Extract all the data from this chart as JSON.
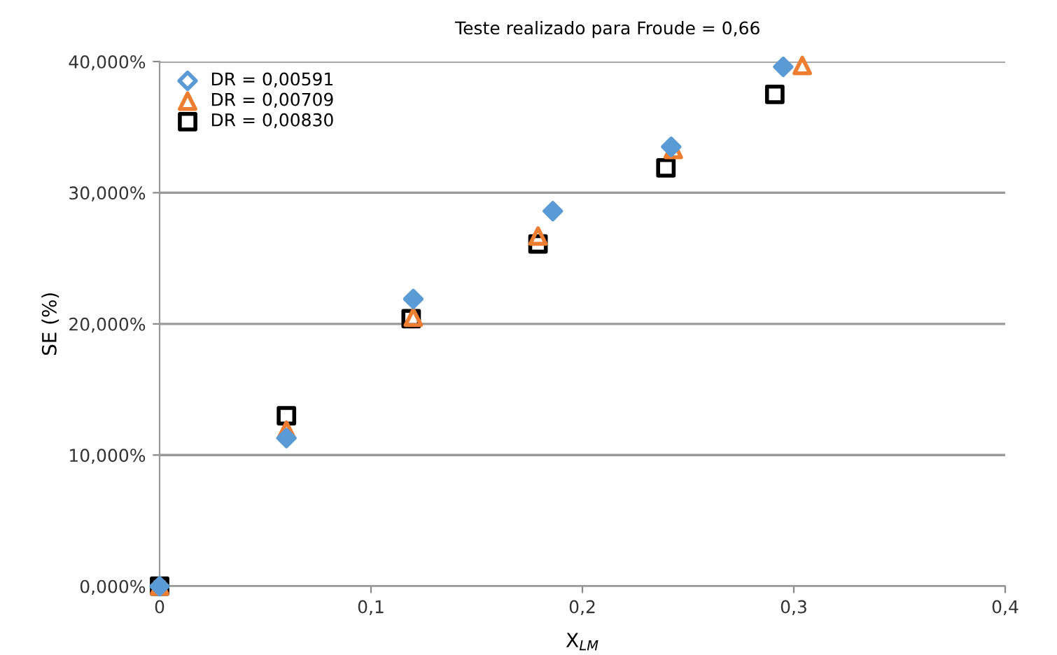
{
  "chart_data": {
    "type": "scatter",
    "title": "Teste realizado para Froude = 0,66",
    "xlabel": "X$_{LM}$",
    "ylabel": "SE (%)",
    "xlim": [
      0,
      0.4
    ],
    "ylim": [
      0,
      40
    ],
    "xticks": [
      {
        "value": 0,
        "label": "0"
      },
      {
        "value": 0.1,
        "label": "0,1"
      },
      {
        "value": 0.2,
        "label": "0,2"
      },
      {
        "value": 0.3,
        "label": "0,3"
      },
      {
        "value": 0.4,
        "label": "0,4"
      }
    ],
    "yticks": [
      {
        "value": 0,
        "label": "0,000%"
      },
      {
        "value": 10,
        "label": "10,000%"
      },
      {
        "value": 20,
        "label": "20,000%"
      },
      {
        "value": 30,
        "label": "30,000%"
      },
      {
        "value": 40,
        "label": "40,000%"
      }
    ],
    "grid": "y",
    "legend": "top left",
    "series": [
      {
        "name": "DR = 0,00591",
        "color": "#5b9bd5",
        "marker": "diamond",
        "x": [
          0,
          0.06,
          0.12,
          0.186,
          0.242,
          0.295
        ],
        "values": [
          0,
          11.3,
          21.9,
          28.6,
          33.5,
          39.6
        ]
      },
      {
        "name": "DR = 0,00709",
        "color": "#ed7d31",
        "marker": "triangle",
        "x": [
          0,
          0.06,
          0.12,
          0.179,
          0.243,
          0.304
        ],
        "values": [
          0,
          11.9,
          20.5,
          26.7,
          33.3,
          39.7
        ]
      },
      {
        "name": "DR = 0,00830",
        "color": "#000000",
        "marker": "square",
        "x": [
          0,
          0.06,
          0.119,
          0.179,
          0.2395,
          0.291
        ],
        "values": [
          0,
          13.0,
          20.4,
          26.1,
          31.9,
          37.5
        ]
      }
    ]
  }
}
